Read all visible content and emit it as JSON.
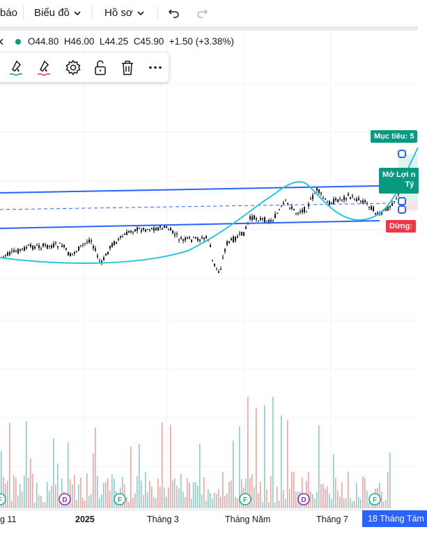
{
  "topbar": {
    "alerts_label": "báo",
    "chart_menu_label": "Biểu đồ",
    "profile_menu_label": "Hồ sơ"
  },
  "legend": {
    "open": "O44.80",
    "high": "H46.00",
    "low": "L44.25",
    "close": "C45.90",
    "change": "+1.50 (+3.38%)"
  },
  "position_labels": {
    "target": "Mục tiêu: 5",
    "open_pl_line1": "Mở Lợi n",
    "open_pl_line2": "Tỷ",
    "stop": "Dừng:"
  },
  "x_axis": {
    "labels": [
      "g 11",
      "2025",
      "Tháng 3",
      "Tháng Năm",
      "Tháng 7"
    ],
    "current_date": "18 Tháng Tám"
  },
  "event_markers": [
    {
      "letter": "F",
      "color": "#22ab94"
    },
    {
      "letter": "D",
      "color": "#9c27b0"
    },
    {
      "letter": "F",
      "color": "#22ab94"
    },
    {
      "letter": "F",
      "color": "#22ab94"
    },
    {
      "letter": "D",
      "color": "#9c27b0"
    },
    {
      "letter": "F",
      "color": "#22ab94"
    }
  ],
  "colors": {
    "accent": "#2962ff",
    "channel": "#2962ff",
    "curve": "#26c6da",
    "target": "#089981",
    "stop": "#f23645",
    "volume_up": "#26a69a",
    "volume_down": "#ef5350"
  },
  "toolbar_icons": [
    "brush-green-icon",
    "brush-red-icon",
    "gear-icon",
    "unlock-icon",
    "trash-icon",
    "more-icon"
  ]
}
